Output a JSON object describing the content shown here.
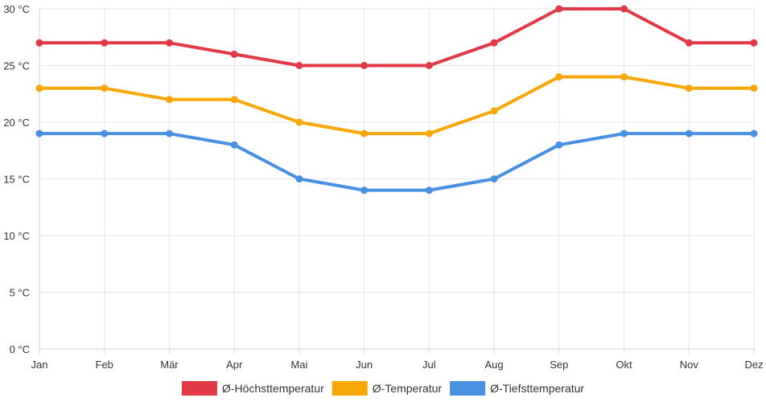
{
  "chart_data": {
    "type": "line",
    "title": "",
    "xlabel": "",
    "ylabel": "",
    "categories": [
      "Jan",
      "Feb",
      "Mär",
      "Apr",
      "Mai",
      "Jun",
      "Jul",
      "Aug",
      "Sep",
      "Okt",
      "Nov",
      "Dez"
    ],
    "ylim": [
      0,
      30
    ],
    "yticks": [
      0,
      5,
      10,
      15,
      20,
      25,
      30
    ],
    "y_unit": "°C",
    "grid": true,
    "legend_position": "bottom",
    "series": [
      {
        "name": "Ø-Höchsttemperatur",
        "color": "#e03a47",
        "values": [
          27,
          27,
          27,
          26,
          25,
          25,
          25,
          27,
          30,
          30,
          27,
          27
        ]
      },
      {
        "name": "Ø-Temperatur",
        "color": "#f7a808",
        "values": [
          23,
          23,
          22,
          22,
          20,
          19,
          19,
          21,
          24,
          24,
          23,
          23
        ]
      },
      {
        "name": "Ø-Tiefsttemperatur",
        "color": "#4a90e2",
        "values": [
          19,
          19,
          19,
          18,
          15,
          14,
          14,
          15,
          18,
          19,
          19,
          19
        ]
      }
    ]
  }
}
